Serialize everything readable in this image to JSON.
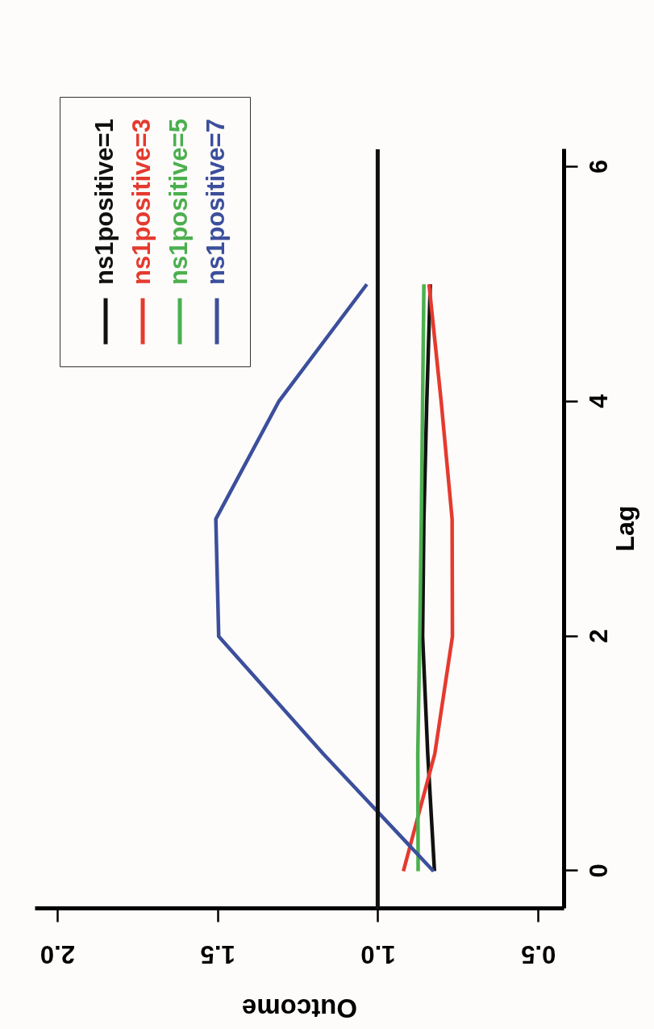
{
  "chart_data": {
    "type": "line",
    "xlabel": "Outcome",
    "ylabel": "Lag",
    "series": [
      {
        "name": "ns1positive=1",
        "color": "#111111",
        "x": [
          0.823,
          0.844,
          0.86,
          0.856,
          0.847,
          0.836
        ],
        "values": [
          0,
          1,
          2,
          3,
          4,
          5
        ]
      },
      {
        "name": "ns1positive=3",
        "color": "#e53a2f",
        "x": [
          0.92,
          0.822,
          0.767,
          0.768,
          0.802,
          0.84
        ],
        "values": [
          0,
          1,
          2,
          3,
          4,
          5
        ]
      },
      {
        "name": "ns1positive=5",
        "color": "#4caf4f",
        "x": [
          0.874,
          0.875,
          0.869,
          0.864,
          0.86,
          0.856
        ],
        "values": [
          0,
          1,
          2,
          3,
          4,
          5
        ]
      },
      {
        "name": "ns1positive=7",
        "color": "#3c4f9c",
        "x": [
          0.826,
          1.17,
          1.496,
          1.505,
          1.309,
          1.034
        ],
        "values": [
          0,
          1,
          2,
          3,
          4,
          5
        ]
      }
    ],
    "xlim": [
      2.07,
      0.42
    ],
    "ylim": [
      -0.32,
      6.15
    ],
    "xticks": [
      {
        "value": 2,
        "label": "2.0"
      },
      1.5,
      {
        "value": 1,
        "label": "1.0"
      },
      0.5
    ],
    "yticks": [
      0,
      2,
      4,
      6
    ],
    "ref_lines": [
      {
        "axis": "x",
        "value": 1,
        "color": "#111111"
      }
    ],
    "legend": "top left"
  }
}
